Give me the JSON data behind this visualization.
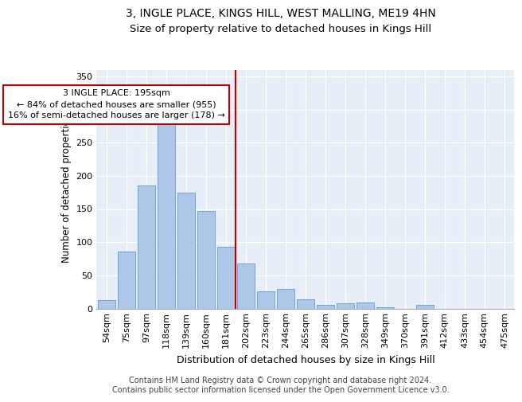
{
  "title": "3, INGLE PLACE, KINGS HILL, WEST MALLING, ME19 4HN",
  "subtitle": "Size of property relative to detached houses in Kings Hill",
  "xlabel": "Distribution of detached houses by size in Kings Hill",
  "ylabel": "Number of detached properties",
  "categories": [
    "54sqm",
    "75sqm",
    "97sqm",
    "118sqm",
    "139sqm",
    "160sqm",
    "181sqm",
    "202sqm",
    "223sqm",
    "244sqm",
    "265sqm",
    "286sqm",
    "307sqm",
    "328sqm",
    "349sqm",
    "370sqm",
    "391sqm",
    "412sqm",
    "433sqm",
    "454sqm",
    "475sqm"
  ],
  "values": [
    13,
    86,
    185,
    288,
    175,
    147,
    93,
    68,
    26,
    30,
    14,
    5,
    8,
    9,
    2,
    0,
    6,
    0,
    0,
    0,
    0
  ],
  "bar_color": "#aec6e8",
  "bar_edge_color": "#5b9bd5",
  "vline_color": "#c00000",
  "annotation_text": "3 INGLE PLACE: 195sqm\n← 84% of detached houses are smaller (955)\n16% of semi-detached houses are larger (178) →",
  "annotation_box_color": "#ffffff",
  "annotation_box_edge": "#c00000",
  "ylim": [
    0,
    360
  ],
  "yticks": [
    0,
    50,
    100,
    150,
    200,
    250,
    300,
    350
  ],
  "background_color": "#e8eef8",
  "footer_text": "Contains HM Land Registry data © Crown copyright and database right 2024.\nContains public sector information licensed under the Open Government Licence v3.0.",
  "title_fontsize": 10,
  "subtitle_fontsize": 9.5,
  "xlabel_fontsize": 9,
  "ylabel_fontsize": 8.5,
  "tick_fontsize": 8,
  "annotation_fontsize": 8,
  "footer_fontsize": 7
}
